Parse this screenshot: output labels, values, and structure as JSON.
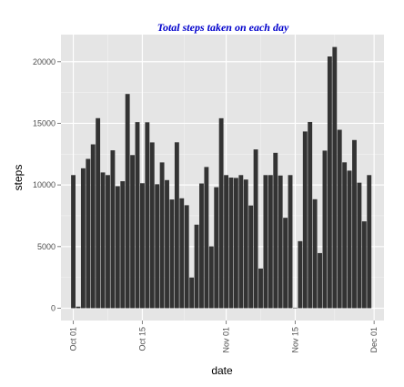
{
  "chart_data": {
    "type": "bar",
    "title": "Total steps taken on each day",
    "xlabel": "date",
    "ylabel": "steps",
    "title_color": "#0000cc",
    "bar_color": "#333333",
    "panel_color": "#e5e5e5",
    "grid_color": "#ffffff",
    "x_start": "2012-10-01",
    "x_range_days": [
      -2.5,
      63
    ],
    "ylim": [
      -1000,
      22200
    ],
    "y_ticks": [
      0,
      5000,
      10000,
      15000,
      20000
    ],
    "y_tick_labels": [
      "0",
      "5000",
      "10000",
      "15000",
      "20000"
    ],
    "x_tick_days": [
      0,
      14,
      31,
      45,
      61
    ],
    "x_tick_labels": [
      "Oct 01",
      "Oct 15",
      "Nov 01",
      "Nov 15",
      "Dec 01"
    ],
    "values": [
      10800,
      126,
      11352,
      12116,
      13294,
      15420,
      11015,
      10800,
      12811,
      9900,
      10304,
      17382,
      12426,
      15098,
      10139,
      15084,
      13452,
      10056,
      11829,
      10395,
      8821,
      13460,
      8918,
      8355,
      2492,
      6778,
      10119,
      11458,
      5018,
      9819,
      15414,
      10800,
      10600,
      10571,
      10800,
      10439,
      8334,
      12883,
      3219,
      10800,
      10800,
      12608,
      10765,
      7336,
      10800,
      41,
      5441,
      14339,
      15110,
      8841,
      4472,
      12787,
      20427,
      21194,
      14478,
      11834,
      11162,
      13646,
      10183,
      7047,
      10800
    ]
  }
}
